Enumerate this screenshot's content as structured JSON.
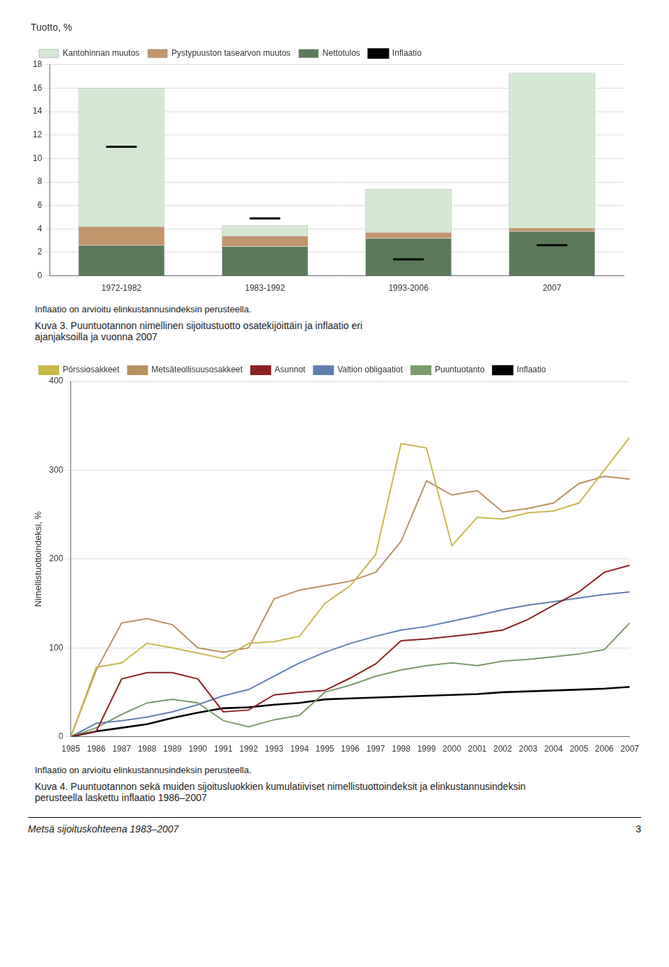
{
  "chart_data": [
    {
      "type": "bar",
      "title": "Tuotto, %",
      "categories": [
        "1972-1982",
        "1983-1992",
        "1993-2006",
        "2007"
      ],
      "stacked": true,
      "series": [
        {
          "name": "Nettotulos",
          "color": "#5a7a5a",
          "values": [
            2.6,
            2.5,
            3.2,
            3.8
          ]
        },
        {
          "name": "Pystypuuston tasearvon muutos",
          "color": "#c4956a",
          "values": [
            1.6,
            0.9,
            0.5,
            0.3
          ]
        },
        {
          "name": "Kantohinnan muutos",
          "color": "#d4e8d4",
          "values": [
            11.8,
            0.9,
            3.7,
            13.2
          ]
        },
        {
          "name": "Inflaatio",
          "type": "scatter",
          "marker": "dash",
          "color": "#000000",
          "values": [
            11.0,
            4.9,
            1.4,
            2.6
          ]
        }
      ],
      "ylim": [
        0,
        18
      ],
      "yticks": [
        0,
        2,
        4,
        6,
        8,
        10,
        12,
        14,
        16,
        18
      ],
      "grid": true,
      "legend": "upper left",
      "annotations": [
        "Inflaatio on arvioitu elinkustannusindeksin perusteella.",
        "Kuva 3.  Puuntuotannon nimellinen sijoitustuotto osatekijöittäin ja inflaatio eri\najanjaksoilla ja vuonna 2007"
      ]
    },
    {
      "type": "line",
      "ylabel": "Nimellistuottoindeksi, %",
      "x": [
        1985,
        1986,
        1987,
        1988,
        1989,
        1990,
        1991,
        1992,
        1993,
        1994,
        1995,
        1996,
        1997,
        1998,
        1999,
        2000,
        2001,
        2002,
        2003,
        2004,
        2005,
        2006,
        2007
      ],
      "series": [
        {
          "name": "Pörssiosakkeet",
          "color": "#c8b84a",
          "values": [
            0,
            78,
            83,
            105,
            100,
            94,
            88,
            105,
            107,
            113,
            150,
            170,
            205,
            330,
            325,
            215,
            247,
            245,
            252,
            254,
            263,
            300,
            337
          ]
        },
        {
          "name": "Metsäteollisuusosakkeet",
          "color": "#b89060",
          "values": [
            0,
            75,
            128,
            133,
            126,
            100,
            95,
            100,
            155,
            165,
            170,
            175,
            185,
            220,
            288,
            272,
            277,
            253,
            257,
            263,
            285,
            293,
            290
          ]
        },
        {
          "name": "Asunnot",
          "color": "#8b2020",
          "values": [
            0,
            6,
            65,
            72,
            72,
            65,
            28,
            30,
            47,
            50,
            52,
            66,
            82,
            108,
            110,
            113,
            116,
            120,
            132,
            148,
            163,
            185,
            193
          ]
        },
        {
          "name": "Valtion obligaatiot",
          "color": "#6080b0",
          "values": [
            0,
            15,
            18,
            22,
            28,
            36,
            46,
            53,
            68,
            83,
            95,
            105,
            113,
            120,
            124,
            130,
            136,
            143,
            148,
            152,
            156,
            160,
            163
          ]
        },
        {
          "name": "Puuntuotanto",
          "color": "#7a9a6a",
          "values": [
            0,
            10,
            25,
            38,
            42,
            38,
            18,
            11,
            19,
            24,
            50,
            58,
            68,
            75,
            80,
            83,
            80,
            85,
            87,
            90,
            93,
            98,
            128
          ]
        },
        {
          "name": "Inflaatio",
          "color": "#000000",
          "values": [
            0,
            6,
            10,
            14,
            21,
            27,
            32,
            33,
            36,
            38,
            42,
            43,
            44,
            45,
            46,
            47,
            48,
            50,
            51,
            52,
            53,
            54,
            56
          ]
        }
      ],
      "xlim": [
        1985,
        2007
      ],
      "xticks": [
        1985,
        1986,
        1987,
        1988,
        1989,
        1990,
        1991,
        1992,
        1993,
        1994,
        1995,
        1996,
        1997,
        1998,
        1999,
        2000,
        2001,
        2002,
        2003,
        2004,
        2005,
        2006,
        2007
      ],
      "ylim": [
        0,
        400
      ],
      "yticks": [
        0,
        100,
        200,
        300,
        400
      ],
      "grid": true,
      "legend": "upper left",
      "annotations": [
        "Inflaatio on arvioitu elinkustannusindeksin perusteella.",
        "Kuva 4.  Puuntuotannon sekä muiden sijoitusluokkien kumulatiiviset nimellistuottoindeksit ja elinkustannusindeksin\nperusteella laskettu inflaatio 1986–2007"
      ]
    }
  ],
  "annotations": [
    "Metsä sijoituskohteena 1983–2007",
    "3"
  ]
}
